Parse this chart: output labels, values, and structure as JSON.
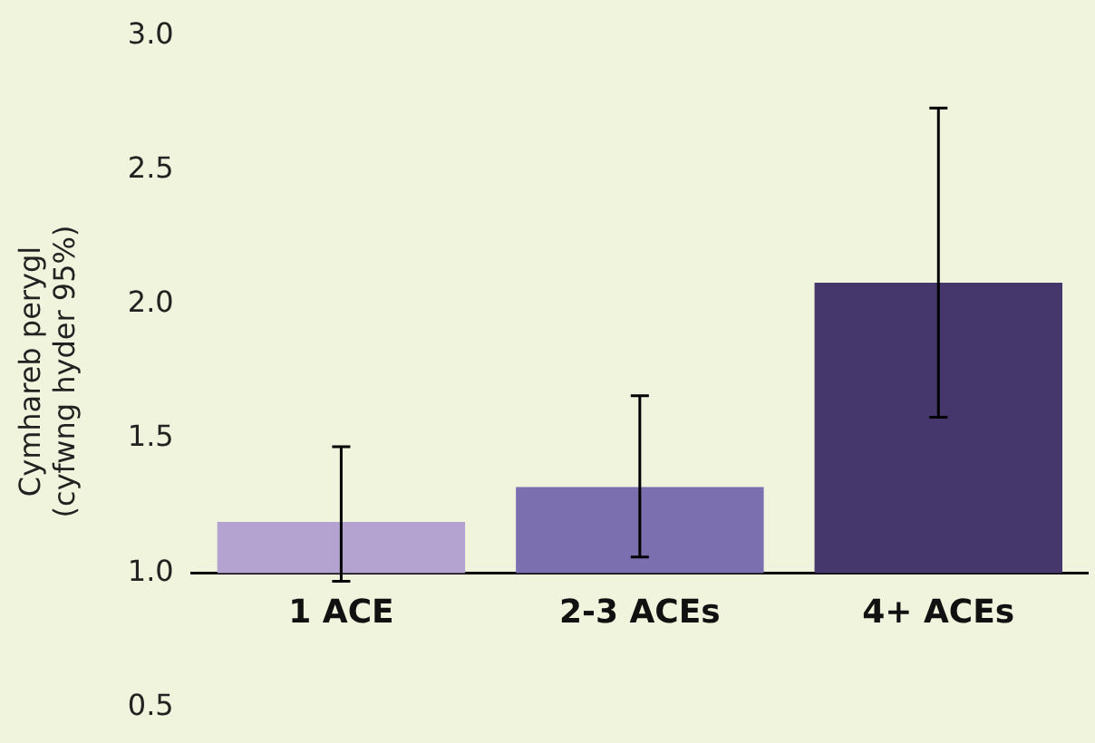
{
  "chart_data": {
    "type": "bar",
    "ylabel": "Cymhareb perygl\n(cyfwng hyder 95%)",
    "categories": [
      "1 ACE",
      "2-3 ACEs",
      "4+ ACEs"
    ],
    "base": [
      1,
      1,
      1
    ],
    "values": [
      0.19,
      0.32,
      1.08
    ],
    "colors": [
      "#b4a2d0",
      "#7b6fb0",
      "#45366c"
    ],
    "errors": [
      [
        0.97,
        1.47
      ],
      [
        1.06,
        1.66
      ],
      [
        1.58,
        2.73
      ]
    ],
    "ylim": [
      0.5,
      3
    ],
    "yticks": [
      {
        "value": 0.5,
        "label": "0.5"
      },
      {
        "value": 1,
        "label": "1.0"
      },
      {
        "value": 1.5,
        "label": "1.5"
      },
      {
        "value": 2,
        "label": "2.0"
      },
      {
        "value": 2.5,
        "label": "2.5"
      },
      {
        "value": 3,
        "label": "3.0"
      }
    ],
    "grid": false,
    "legend": false
  }
}
